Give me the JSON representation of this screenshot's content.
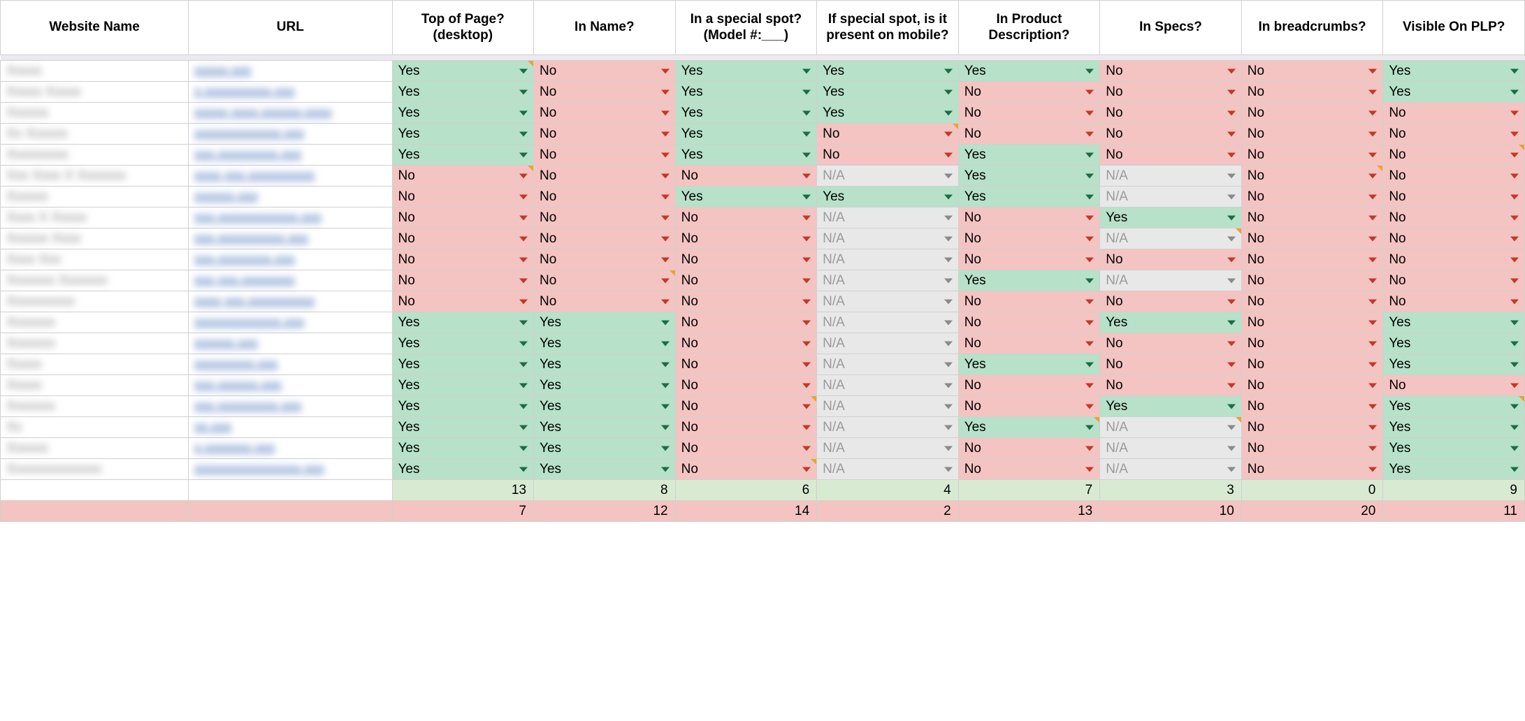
{
  "colors": {
    "yes_bg": "#b7e1c8",
    "no_bg": "#f4c4c2",
    "na_bg": "#e8e8e8",
    "na_text": "#9a9a9a",
    "sum_green_bg": "#d9ead3",
    "border": "#d0d0d0",
    "tri_green": "#1e6b46",
    "tri_red": "#c0392b",
    "tri_gray": "#8a8a8a",
    "note": "#f0a030",
    "link": "#2a5db0"
  },
  "headers": [
    "Website Name",
    "URL",
    "Top of Page? (desktop)",
    "In Name?",
    "In a special spot? (Model #:___)",
    "If special spot, is it present on mobile?",
    "In Product Description?",
    "In Specs?",
    "In breadcrumbs?",
    "Visible On PLP?"
  ],
  "value_labels": {
    "yes": "Yes",
    "no": "No",
    "na": "N/A"
  },
  "rows": [
    {
      "name": "Xxxxx",
      "url": "xxxxx.xxx",
      "cells": [
        "Yes",
        "No",
        "Yes",
        "Yes",
        "Yes",
        "No",
        "No",
        "Yes"
      ],
      "notes": [
        0
      ]
    },
    {
      "name": "Xxxxx Xxxxx",
      "url": "x.xxxxxxxxxx.xxx",
      "cells": [
        "Yes",
        "No",
        "Yes",
        "Yes",
        "No",
        "No",
        "No",
        "Yes"
      ]
    },
    {
      "name": "Xxxxxx",
      "url": "xxxxx xxxx.xxxxxx.xxxx",
      "cells": [
        "Yes",
        "No",
        "Yes",
        "Yes",
        "No",
        "No",
        "No",
        "No"
      ]
    },
    {
      "name": "Xx Xxxxxx",
      "url": "xxxxxxxxxxxxx.xxx",
      "cells": [
        "Yes",
        "No",
        "Yes",
        "No",
        "No",
        "No",
        "No",
        "No"
      ],
      "notes": [
        3
      ]
    },
    {
      "name": "Xxxxxxxxx",
      "url": "xxx.xxxxxxxxx.xxx",
      "cells": [
        "Yes",
        "No",
        "Yes",
        "No",
        "Yes",
        "No",
        "No",
        "No"
      ],
      "notes": [
        7
      ]
    },
    {
      "name": "Xxx Xxxx X Xxxxxxx",
      "url": "xxxx xxx.xxxxxxxxxx",
      "cells": [
        "No",
        "No",
        "No",
        "N/A",
        "Yes",
        "N/A",
        "No",
        "No"
      ],
      "notes": [
        0,
        6
      ]
    },
    {
      "name": "Xxxxxx",
      "url": "xxxxxx.xxx",
      "cells": [
        "No",
        "No",
        "Yes",
        "Yes",
        "Yes",
        "N/A",
        "No",
        "No"
      ]
    },
    {
      "name": "Xxxx X Xxxxx",
      "url": "xxx.xxxxxxxxxxxx.xxx",
      "cells": [
        "No",
        "No",
        "No",
        "N/A",
        "No",
        "Yes",
        "No",
        "No"
      ]
    },
    {
      "name": "Xxxxxx Xxxx",
      "url": "xxx.xxxxxxxxxx.xxx",
      "cells": [
        "No",
        "No",
        "No",
        "N/A",
        "No",
        "N/A",
        "No",
        "No"
      ],
      "notes": [
        5
      ]
    },
    {
      "name": "Xxxx Xxx",
      "url": "xxx.xxxxxxxx.xxx",
      "cells": [
        "No",
        "No",
        "No",
        "N/A",
        "No",
        "No",
        "No",
        "No"
      ]
    },
    {
      "name": "Xxxxxxx Xxxxxxx",
      "url": "xxx xxx.xxxxxxxx",
      "cells": [
        "No",
        "No",
        "No",
        "N/A",
        "Yes",
        "N/A",
        "No",
        "No"
      ],
      "notes": [
        1
      ]
    },
    {
      "name": "Xxxxxxxxxx",
      "url": "xxxx xxx.xxxxxxxxxx",
      "cells": [
        "No",
        "No",
        "No",
        "N/A",
        "No",
        "No",
        "No",
        "No"
      ]
    },
    {
      "name": "Xxxxxxx",
      "url": "xxxxxxxxxxxxx.xxx",
      "cells": [
        "Yes",
        "Yes",
        "No",
        "N/A",
        "No",
        "Yes",
        "No",
        "Yes"
      ]
    },
    {
      "name": "Xxxxxxx",
      "url": "xxxxxx.xxx",
      "cells": [
        "Yes",
        "Yes",
        "No",
        "N/A",
        "No",
        "No",
        "No",
        "Yes"
      ]
    },
    {
      "name": "Xxxxx",
      "url": "xxxxxxxxx.xxx",
      "cells": [
        "Yes",
        "Yes",
        "No",
        "N/A",
        "Yes",
        "No",
        "No",
        "Yes"
      ]
    },
    {
      "name": "Xxxxx",
      "url": "xxx.xxxxxx.xxx",
      "cells": [
        "Yes",
        "Yes",
        "No",
        "N/A",
        "No",
        "No",
        "No",
        "No"
      ]
    },
    {
      "name": "Xxxxxxx",
      "url": "xxx.xxxxxxxxx.xxx",
      "cells": [
        "Yes",
        "Yes",
        "No",
        "N/A",
        "No",
        "Yes",
        "No",
        "Yes"
      ],
      "notes": [
        2,
        7
      ]
    },
    {
      "name": "Xx",
      "url": "xx.xxx",
      "cells": [
        "Yes",
        "Yes",
        "No",
        "N/A",
        "Yes",
        "N/A",
        "No",
        "Yes"
      ],
      "notes": [
        4,
        5
      ]
    },
    {
      "name": "Xxxxxx",
      "url": "x.xxxxxxx.xxx",
      "cells": [
        "Yes",
        "Yes",
        "No",
        "N/A",
        "No",
        "N/A",
        "No",
        "Yes"
      ]
    },
    {
      "name": "Xxxxxxxxxxxxxx",
      "url": "xxxxxxxxxxxxxxxx.xxx",
      "cells": [
        "Yes",
        "Yes",
        "No",
        "N/A",
        "No",
        "N/A",
        "No",
        "Yes"
      ],
      "notes": [
        2
      ]
    }
  ],
  "summary": {
    "green": [
      13,
      8,
      6,
      4,
      7,
      3,
      0,
      9
    ],
    "red": [
      7,
      12,
      14,
      2,
      13,
      10,
      20,
      11
    ]
  }
}
